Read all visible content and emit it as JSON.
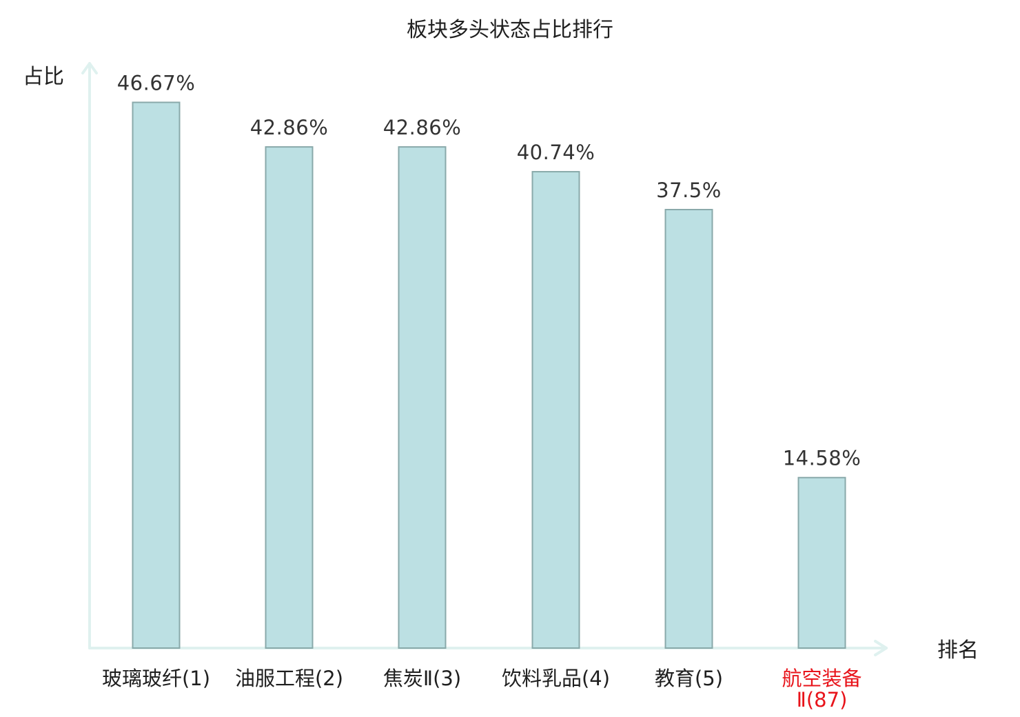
{
  "chart_data": {
    "type": "bar",
    "title": "板块多头状态占比排行",
    "ylabel": "占比",
    "xlabel": "排名",
    "ylim": [
      0,
      50
    ],
    "grid": false,
    "bar_color": "#bce0e3",
    "bar_edge_color": "#89a9aa",
    "axis_color": "#dff1ef",
    "highlight_color": "#e8141b",
    "categories": [
      {
        "lines": [
          "玻璃玻纤(1)"
        ],
        "highlight": false
      },
      {
        "lines": [
          "油服工程(2)"
        ],
        "highlight": false
      },
      {
        "lines": [
          "焦炭Ⅱ(3)"
        ],
        "highlight": false
      },
      {
        "lines": [
          "饮料乳品(4)"
        ],
        "highlight": false
      },
      {
        "lines": [
          "教育(5)"
        ],
        "highlight": false
      },
      {
        "lines": [
          "航空装备",
          "Ⅱ(87)"
        ],
        "highlight": true
      }
    ],
    "values": [
      46.67,
      42.86,
      42.86,
      40.74,
      37.5,
      14.58
    ],
    "data_labels": [
      "46.67%",
      "42.86%",
      "42.86%",
      "40.74%",
      "37.5%",
      "14.58%"
    ]
  }
}
